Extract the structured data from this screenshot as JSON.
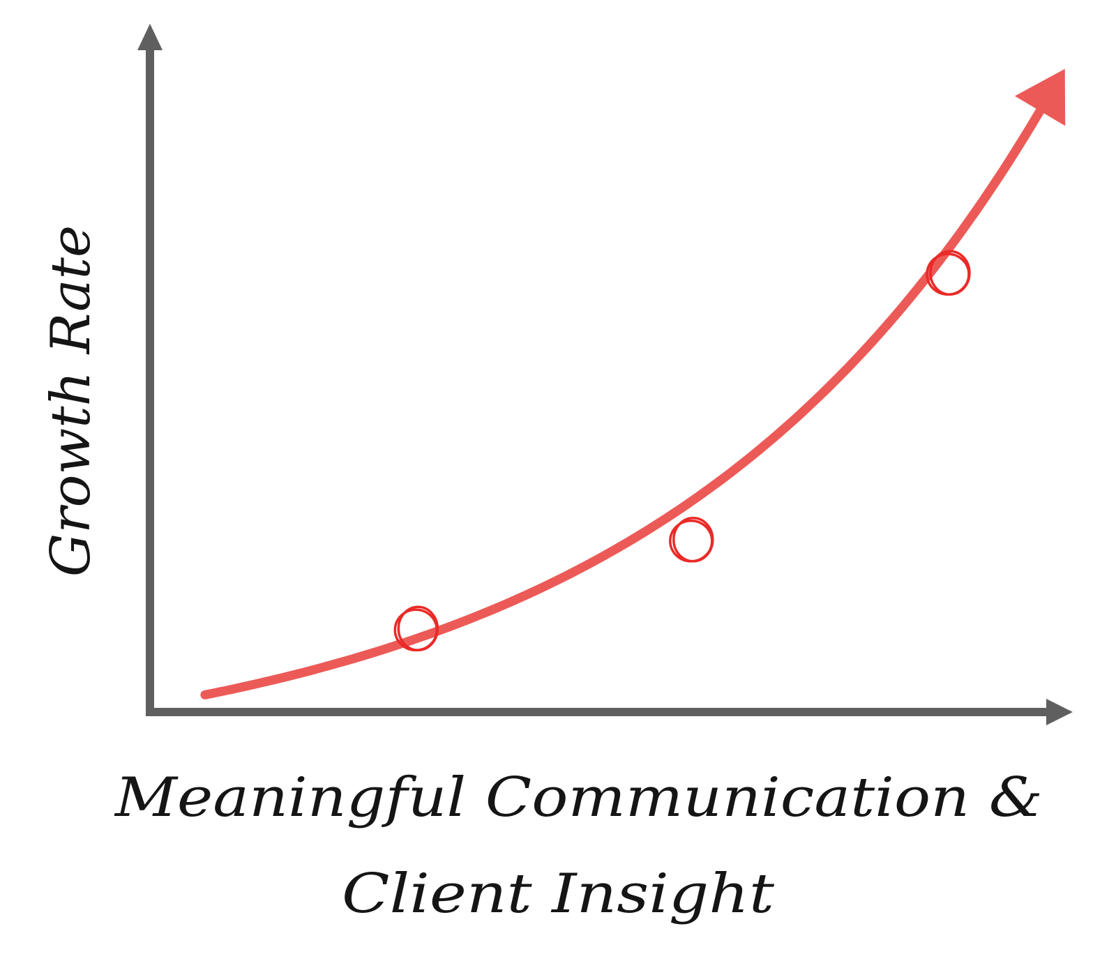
{
  "chart_data": {
    "type": "line",
    "title": "",
    "xlabel_lines": [
      "Meaningful Communication &",
      "Client Insight"
    ],
    "ylabel": "Growth Rate",
    "x_ticks": [],
    "y_ticks": [],
    "grid": false,
    "legend": "none",
    "series": [
      {
        "curve": "exponential",
        "color": "#ec5a57",
        "marker_color": "#ea2a28",
        "markers": [
          {
            "x": 0.29,
            "y": 0.12
          },
          {
            "x": 0.59,
            "y": 0.25
          },
          {
            "x": 0.87,
            "y": 0.64
          }
        ]
      }
    ],
    "axis_color": "#5f5f5f",
    "xlim": [
      0,
      1
    ],
    "ylim": [
      0,
      1
    ]
  }
}
